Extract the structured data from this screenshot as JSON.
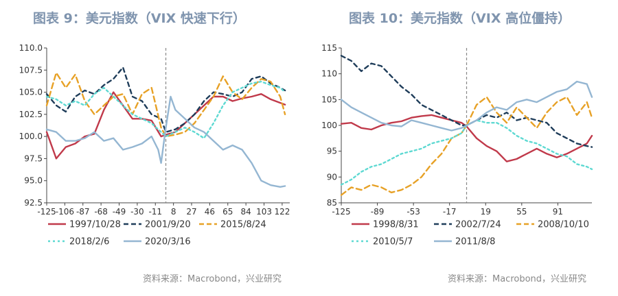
{
  "charts": [
    {
      "title": "图表 9：美元指数（VIX 快速下行）",
      "source": "资料来源：Macrobond，兴业研究"
    },
    {
      "title": "图表 10：美元指数（VIX 高位僵持）",
      "source": "资料来源：Macrobond，兴业研究"
    }
  ],
  "chart_data": [
    {
      "type": "line",
      "title": "图表 9：美元指数（VIX 快速下行）",
      "xlabel": "",
      "ylabel": "",
      "xlim": [
        -125,
        130
      ],
      "ylim": [
        92.5,
        110.0
      ],
      "x_ticks": [
        -125,
        -106,
        -87,
        -68,
        -49,
        -30,
        -11,
        8,
        27,
        46,
        65,
        84,
        103,
        122
      ],
      "y_ticks": [
        92.5,
        95.0,
        97.5,
        100.0,
        102.5,
        105.0,
        107.5,
        110.0
      ],
      "y_tick_labels": [
        "92.5",
        "95.0",
        "97.5",
        "100.0",
        "102.5",
        "105.0",
        "107.5",
        "110.0"
      ],
      "reference_x": 0,
      "grid": false,
      "legend": "bottom",
      "series": [
        {
          "name": "1997/10/28",
          "color": "#c0394a",
          "dash": "solid",
          "x": [
            -125,
            -115,
            -105,
            -95,
            -85,
            -75,
            -65,
            -55,
            -45,
            -35,
            -25,
            -15,
            -5,
            0,
            10,
            20,
            30,
            40,
            50,
            60,
            70,
            80,
            90,
            100,
            110,
            120,
            125
          ],
          "y": [
            100.5,
            97.5,
            98.8,
            99.2,
            100.0,
            100.3,
            103.0,
            105.0,
            103.5,
            102.0,
            102.0,
            101.8,
            100.0,
            100.2,
            100.5,
            101.5,
            102.5,
            103.5,
            104.5,
            104.5,
            104.0,
            104.3,
            104.5,
            104.8,
            104.2,
            103.8,
            103.6
          ]
        },
        {
          "name": "2001/9/20",
          "color": "#1f3d5a",
          "dash": "6,5",
          "x": [
            -125,
            -115,
            -105,
            -95,
            -85,
            -75,
            -65,
            -55,
            -45,
            -35,
            -25,
            -15,
            -5,
            0,
            10,
            20,
            30,
            40,
            50,
            60,
            70,
            80,
            90,
            100,
            110,
            120,
            125
          ],
          "y": [
            104.8,
            103.5,
            102.8,
            104.5,
            105.2,
            104.8,
            105.8,
            106.5,
            107.8,
            104.5,
            104.0,
            102.5,
            102.0,
            100.5,
            100.8,
            101.5,
            102.5,
            104.0,
            105.0,
            104.8,
            104.5,
            105.0,
            106.5,
            106.8,
            106.0,
            105.5,
            105.2
          ]
        },
        {
          "name": "2015/8/24",
          "color": "#e7a126",
          "dash": "8,5",
          "x": [
            -125,
            -115,
            -105,
            -95,
            -85,
            -75,
            -65,
            -55,
            -45,
            -35,
            -25,
            -15,
            -5,
            0,
            10,
            20,
            30,
            40,
            50,
            60,
            70,
            80,
            90,
            100,
            110,
            120,
            125
          ],
          "y": [
            103.5,
            107.2,
            105.5,
            107.0,
            104.0,
            102.5,
            103.5,
            104.5,
            104.8,
            102.5,
            104.8,
            105.5,
            101.0,
            100.0,
            100.2,
            100.5,
            101.5,
            103.0,
            104.5,
            106.8,
            105.0,
            104.2,
            105.5,
            106.5,
            106.2,
            104.5,
            102.5
          ]
        },
        {
          "name": "2018/2/6",
          "color": "#5ed9d2",
          "dash": "3,4",
          "x": [
            -125,
            -115,
            -105,
            -95,
            -85,
            -75,
            -65,
            -55,
            -45,
            -35,
            -25,
            -15,
            -5,
            0,
            10,
            20,
            30,
            40,
            50,
            60,
            70,
            80,
            90,
            100,
            110,
            120,
            125
          ],
          "y": [
            104.5,
            104.2,
            103.5,
            104.0,
            103.5,
            104.8,
            105.5,
            104.5,
            103.5,
            102.5,
            102.0,
            101.5,
            100.5,
            100.0,
            100.5,
            101.0,
            100.5,
            99.8,
            101.5,
            103.5,
            105.0,
            105.5,
            106.0,
            106.2,
            105.8,
            105.5,
            105.0
          ]
        },
        {
          "name": "2020/3/16",
          "color": "#94b6d2",
          "dash": "solid",
          "x": [
            -125,
            -115,
            -105,
            -95,
            -85,
            -75,
            -65,
            -55,
            -45,
            -35,
            -25,
            -15,
            -8,
            -5,
            0,
            5,
            10,
            20,
            30,
            40,
            50,
            60,
            70,
            80,
            90,
            100,
            110,
            120,
            125
          ],
          "y": [
            100.8,
            100.5,
            99.5,
            99.5,
            99.8,
            100.5,
            99.5,
            99.8,
            98.5,
            98.8,
            99.2,
            100.0,
            98.5,
            97.0,
            101.0,
            104.5,
            103.0,
            102.0,
            101.0,
            100.5,
            99.5,
            98.5,
            99.0,
            98.5,
            97.0,
            95.0,
            94.5,
            94.3,
            94.4
          ]
        }
      ]
    },
    {
      "type": "line",
      "title": "图表 10：美元指数（VIX 高位僵持）",
      "xlabel": "",
      "ylabel": "",
      "xlim": [
        -125,
        125
      ],
      "ylim": [
        85,
        115
      ],
      "x_ticks": [
        -125,
        -89,
        -53,
        -17,
        19,
        55,
        91
      ],
      "y_ticks": [
        85,
        90,
        95,
        100,
        105,
        110,
        115
      ],
      "y_tick_labels": [
        "85",
        "90",
        "95",
        "100",
        "105",
        "110",
        "115"
      ],
      "reference_x": 0,
      "grid": false,
      "legend": "bottom",
      "series": [
        {
          "name": "1998/8/31",
          "color": "#c0394a",
          "dash": "solid",
          "x": [
            -125,
            -115,
            -105,
            -95,
            -85,
            -75,
            -65,
            -55,
            -45,
            -35,
            -25,
            -15,
            -5,
            0,
            10,
            20,
            30,
            40,
            50,
            60,
            70,
            80,
            90,
            100,
            110,
            120,
            125
          ],
          "y": [
            100.3,
            100.5,
            99.5,
            99.2,
            100.0,
            100.5,
            100.8,
            101.5,
            101.8,
            102.0,
            101.5,
            101.0,
            100.5,
            99.8,
            97.5,
            96.0,
            95.0,
            93.0,
            93.5,
            94.5,
            95.5,
            94.5,
            93.8,
            94.5,
            95.5,
            96.5,
            98.0
          ]
        },
        {
          "name": "2002/7/24",
          "color": "#1f3d5a",
          "dash": "6,5",
          "x": [
            -125,
            -115,
            -105,
            -95,
            -85,
            -75,
            -65,
            -55,
            -45,
            -35,
            -25,
            -15,
            -5,
            0,
            10,
            20,
            30,
            40,
            50,
            60,
            70,
            80,
            90,
            100,
            110,
            120,
            125
          ],
          "y": [
            113.5,
            112.5,
            110.5,
            112.0,
            111.5,
            109.5,
            107.5,
            106.0,
            104.0,
            103.0,
            102.0,
            101.0,
            100.0,
            100.0,
            101.0,
            102.0,
            101.5,
            102.5,
            101.0,
            101.5,
            101.0,
            100.5,
            98.5,
            97.5,
            96.5,
            96.0,
            95.8
          ]
        },
        {
          "name": "2008/10/10",
          "color": "#e7a126",
          "dash": "8,5",
          "x": [
            -125,
            -115,
            -105,
            -95,
            -85,
            -75,
            -65,
            -55,
            -45,
            -35,
            -25,
            -15,
            -5,
            0,
            10,
            20,
            30,
            40,
            50,
            60,
            70,
            80,
            90,
            100,
            110,
            120,
            125
          ],
          "y": [
            86.5,
            88.0,
            87.5,
            88.5,
            88.0,
            87.0,
            87.5,
            88.5,
            90.0,
            92.5,
            94.5,
            97.5,
            98.5,
            100.0,
            104.0,
            105.5,
            102.5,
            100.5,
            103.5,
            101.5,
            99.5,
            102.5,
            104.5,
            105.5,
            102.0,
            104.5,
            101.5
          ]
        },
        {
          "name": "2010/5/7",
          "color": "#5ed9d2",
          "dash": "3,4",
          "x": [
            -125,
            -115,
            -105,
            -95,
            -85,
            -75,
            -65,
            -55,
            -45,
            -35,
            -25,
            -15,
            -5,
            0,
            10,
            20,
            30,
            40,
            50,
            60,
            70,
            80,
            90,
            100,
            110,
            120,
            125
          ],
          "y": [
            88.5,
            89.5,
            91.0,
            92.0,
            92.5,
            93.5,
            94.5,
            95.0,
            95.5,
            96.5,
            97.0,
            97.5,
            98.5,
            100.0,
            101.0,
            100.5,
            100.5,
            99.5,
            98.0,
            97.0,
            96.5,
            95.5,
            94.5,
            94.0,
            92.5,
            92.0,
            91.5
          ]
        },
        {
          "name": "2011/8/8",
          "color": "#94b6d2",
          "dash": "solid",
          "x": [
            -125,
            -115,
            -105,
            -95,
            -85,
            -75,
            -65,
            -55,
            -45,
            -35,
            -25,
            -15,
            -5,
            0,
            10,
            20,
            30,
            40,
            50,
            60,
            70,
            80,
            90,
            100,
            110,
            120,
            125
          ],
          "y": [
            105.0,
            103.5,
            102.5,
            101.5,
            100.5,
            100.0,
            99.8,
            101.0,
            100.5,
            100.0,
            99.5,
            99.0,
            99.5,
            100.0,
            101.0,
            102.5,
            103.5,
            103.0,
            104.5,
            105.0,
            104.5,
            105.5,
            106.5,
            107.0,
            108.5,
            108.0,
            105.5
          ]
        }
      ]
    }
  ]
}
